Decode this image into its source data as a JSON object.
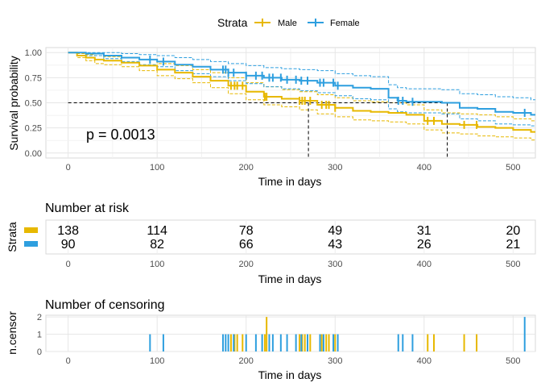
{
  "legend": {
    "title": "Strata",
    "entries": [
      {
        "label": "Male",
        "color": "#E7B800"
      },
      {
        "label": "Female",
        "color": "#2E9FDF"
      }
    ]
  },
  "chart_data": [
    {
      "type": "line",
      "subtype": "kaplan-meier",
      "xlabel": "Time in days",
      "ylabel": "Survival probability",
      "xlim": [
        -25,
        525
      ],
      "ylim": [
        -0.05,
        1.05
      ],
      "xticks": [
        0,
        100,
        200,
        300,
        400,
        500
      ],
      "yticks": [
        "0.00",
        "0.25",
        "0.50",
        "0.75",
        "1.00"
      ],
      "grid": true,
      "annotation": "p = 0.0013",
      "median_line": {
        "y": 0.5,
        "medians": [
          270,
          426
        ]
      },
      "series": [
        {
          "name": "Male",
          "color": "#E7B800",
          "x": [
            0,
            10,
            20,
            30,
            40,
            60,
            80,
            100,
            120,
            140,
            160,
            180,
            200,
            220,
            240,
            260,
            280,
            300,
            320,
            340,
            360,
            380,
            400,
            420,
            440,
            460,
            480,
            500,
            520
          ],
          "y": [
            1.0,
            0.97,
            0.95,
            0.93,
            0.92,
            0.9,
            0.87,
            0.83,
            0.8,
            0.76,
            0.72,
            0.67,
            0.61,
            0.56,
            0.54,
            0.52,
            0.48,
            0.45,
            0.42,
            0.41,
            0.4,
            0.38,
            0.32,
            0.29,
            0.28,
            0.26,
            0.25,
            0.23,
            0.21
          ],
          "lower": [
            1.0,
            0.95,
            0.92,
            0.89,
            0.88,
            0.86,
            0.82,
            0.77,
            0.74,
            0.7,
            0.65,
            0.59,
            0.53,
            0.48,
            0.46,
            0.43,
            0.39,
            0.36,
            0.33,
            0.32,
            0.31,
            0.29,
            0.23,
            0.2,
            0.19,
            0.17,
            0.16,
            0.15,
            0.13
          ],
          "upper": [
            1.0,
            0.99,
            0.98,
            0.97,
            0.96,
            0.95,
            0.93,
            0.89,
            0.87,
            0.83,
            0.8,
            0.75,
            0.7,
            0.66,
            0.63,
            0.61,
            0.58,
            0.55,
            0.52,
            0.51,
            0.5,
            0.48,
            0.43,
            0.4,
            0.39,
            0.38,
            0.36,
            0.34,
            0.32
          ],
          "censor_x": [
            183,
            187,
            190,
            196,
            221,
            223,
            260,
            263,
            266,
            272,
            285,
            290,
            293,
            300,
            404,
            411,
            445,
            459
          ]
        },
        {
          "name": "Female",
          "color": "#2E9FDF",
          "x": [
            0,
            20,
            40,
            60,
            80,
            100,
            120,
            140,
            160,
            180,
            200,
            220,
            240,
            260,
            280,
            300,
            320,
            340,
            360,
            370,
            380,
            400,
            420,
            440,
            460,
            480,
            500,
            520
          ],
          "y": [
            1.0,
            0.99,
            0.97,
            0.95,
            0.93,
            0.91,
            0.88,
            0.86,
            0.83,
            0.8,
            0.77,
            0.75,
            0.73,
            0.72,
            0.7,
            0.67,
            0.65,
            0.64,
            0.55,
            0.52,
            0.51,
            0.51,
            0.5,
            0.45,
            0.44,
            0.41,
            0.4,
            0.38
          ],
          "lower": [
            1.0,
            0.97,
            0.94,
            0.91,
            0.88,
            0.86,
            0.82,
            0.79,
            0.76,
            0.72,
            0.69,
            0.66,
            0.64,
            0.62,
            0.6,
            0.57,
            0.54,
            0.53,
            0.44,
            0.41,
            0.4,
            0.4,
            0.39,
            0.34,
            0.32,
            0.29,
            0.28,
            0.27
          ],
          "upper": [
            1.0,
            1.0,
            1.0,
            0.99,
            0.98,
            0.97,
            0.95,
            0.93,
            0.91,
            0.89,
            0.87,
            0.85,
            0.84,
            0.83,
            0.82,
            0.79,
            0.77,
            0.76,
            0.68,
            0.65,
            0.64,
            0.64,
            0.63,
            0.59,
            0.58,
            0.56,
            0.55,
            0.53
          ],
          "censor_x": [
            92,
            107,
            174,
            177,
            180,
            186,
            200,
            211,
            218,
            226,
            230,
            239,
            246,
            256,
            262,
            269,
            283,
            287,
            298,
            303,
            371,
            376,
            387,
            513
          ]
        }
      ]
    },
    {
      "type": "table",
      "title": "Number at risk",
      "xlabel": "Time in days",
      "ylabel": "Strata",
      "xticks": [
        0,
        100,
        200,
        300,
        400,
        500
      ],
      "columns": [
        0,
        100,
        200,
        300,
        400,
        500
      ],
      "rows": [
        {
          "name": "Male",
          "color": "#E7B800",
          "values": [
            "138",
            "114",
            "78",
            "49",
            "31",
            "20"
          ]
        },
        {
          "name": "Female",
          "color": "#2E9FDF",
          "values": [
            "90",
            "82",
            "66",
            "43",
            "26",
            "21"
          ]
        }
      ]
    },
    {
      "type": "bar",
      "title": "Number of censoring",
      "xlabel": "Time in days",
      "ylabel": "n.censor",
      "xticks": [
        0,
        100,
        200,
        300,
        400,
        500
      ],
      "yticks": [
        "0",
        "1",
        "2"
      ],
      "ylim": [
        0,
        2.1
      ],
      "series": [
        {
          "name": "Male",
          "color": "#E7B800",
          "x": [
            183,
            187,
            190,
            196,
            221,
            223,
            260,
            263,
            266,
            272,
            285,
            290,
            293,
            300,
            404,
            411,
            445,
            459
          ],
          "values": [
            1,
            1,
            1,
            1,
            1,
            2,
            1,
            1,
            1,
            1,
            1,
            1,
            1,
            1,
            1,
            1,
            1,
            1
          ]
        },
        {
          "name": "Female",
          "color": "#2E9FDF",
          "x": [
            92,
            107,
            174,
            177,
            180,
            186,
            200,
            211,
            218,
            226,
            230,
            239,
            246,
            256,
            262,
            269,
            283,
            287,
            298,
            303,
            371,
            376,
            387,
            513
          ],
          "values": [
            1,
            1,
            1,
            1,
            1,
            1,
            1,
            1,
            1,
            1,
            1,
            1,
            1,
            1,
            1,
            1,
            1,
            1,
            1,
            1,
            1,
            1,
            1,
            2
          ]
        }
      ]
    }
  ]
}
